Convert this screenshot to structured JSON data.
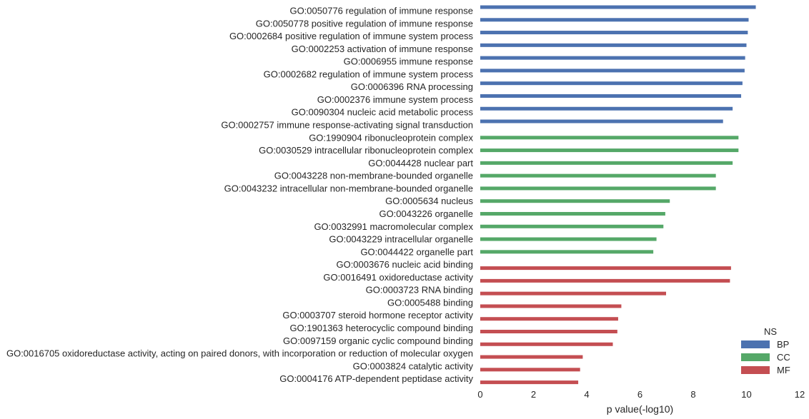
{
  "chart_data": {
    "type": "bar",
    "orientation": "horizontal",
    "xlabel": "p value(-log10)",
    "ylabel": "",
    "xlim": [
      0,
      12
    ],
    "xticks": [
      "0",
      "2",
      "4",
      "6",
      "8",
      "10",
      "12"
    ],
    "grid": false,
    "legend_position": "bottom-right",
    "legend_title": "NS",
    "series": [
      {
        "name": "BP",
        "color": "#4c72b0"
      },
      {
        "name": "CC",
        "color": "#55a868"
      },
      {
        "name": "MF",
        "color": "#c44e52"
      }
    ],
    "categories": [
      {
        "label": "GO:0050776 regulation of immune response",
        "value": 10.35,
        "ns": "BP"
      },
      {
        "label": "GO:0050778 positive regulation of immune response",
        "value": 10.08,
        "ns": "BP"
      },
      {
        "label": "GO:0002684 positive regulation of immune system process",
        "value": 10.05,
        "ns": "BP"
      },
      {
        "label": "GO:0002253 activation of immune response",
        "value": 10.0,
        "ns": "BP"
      },
      {
        "label": "GO:0006955 immune response",
        "value": 9.95,
        "ns": "BP"
      },
      {
        "label": "GO:0002682 regulation of immune system process",
        "value": 9.93,
        "ns": "BP"
      },
      {
        "label": "GO:0006396 RNA processing",
        "value": 9.85,
        "ns": "BP"
      },
      {
        "label": "GO:0002376 immune system process",
        "value": 9.8,
        "ns": "BP"
      },
      {
        "label": "GO:0090304 nucleic acid metabolic process",
        "value": 9.48,
        "ns": "BP"
      },
      {
        "label": "GO:0002757 immune response-activating signal transduction",
        "value": 9.12,
        "ns": "BP"
      },
      {
        "label": "GO:1990904 ribonucleoprotein complex",
        "value": 9.7,
        "ns": "CC"
      },
      {
        "label": "GO:0030529 intracellular ribonucleoprotein complex",
        "value": 9.7,
        "ns": "CC"
      },
      {
        "label": "GO:0044428 nuclear part",
        "value": 9.48,
        "ns": "CC"
      },
      {
        "label": "GO:0043228 non-membrane-bounded organelle",
        "value": 8.85,
        "ns": "CC"
      },
      {
        "label": "GO:0043232 intracellular non-membrane-bounded organelle",
        "value": 8.85,
        "ns": "CC"
      },
      {
        "label": "GO:0005634 nucleus",
        "value": 7.12,
        "ns": "CC"
      },
      {
        "label": "GO:0043226 organelle",
        "value": 6.95,
        "ns": "CC"
      },
      {
        "label": "GO:0032991 macromolecular complex",
        "value": 6.88,
        "ns": "CC"
      },
      {
        "label": "GO:0043229 intracellular organelle",
        "value": 6.62,
        "ns": "CC"
      },
      {
        "label": "GO:0044422 organelle part",
        "value": 6.5,
        "ns": "CC"
      },
      {
        "label": "GO:0003676 nucleic acid binding",
        "value": 9.42,
        "ns": "MF"
      },
      {
        "label": "GO:0016491 oxidoreductase activity",
        "value": 9.38,
        "ns": "MF"
      },
      {
        "label": "GO:0003723 RNA binding",
        "value": 6.98,
        "ns": "MF"
      },
      {
        "label": "GO:0005488 binding",
        "value": 5.3,
        "ns": "MF"
      },
      {
        "label": "GO:0003707 steroid hormone receptor activity",
        "value": 5.18,
        "ns": "MF"
      },
      {
        "label": "GO:1901363 heterocyclic compound binding",
        "value": 5.15,
        "ns": "MF"
      },
      {
        "label": "GO:0097159 organic cyclic compound binding",
        "value": 4.98,
        "ns": "MF"
      },
      {
        "label": "GO:0016705 oxidoreductase activity, acting on paired donors, with incorporation or reduction of molecular oxygen",
        "value": 3.85,
        "ns": "MF"
      },
      {
        "label": "GO:0003824 catalytic activity",
        "value": 3.75,
        "ns": "MF"
      },
      {
        "label": "GO:0004176 ATP-dependent peptidase activity",
        "value": 3.68,
        "ns": "MF"
      }
    ]
  }
}
